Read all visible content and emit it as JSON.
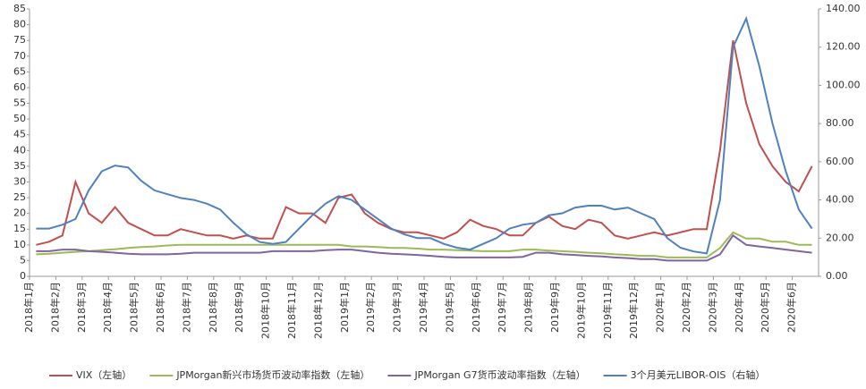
{
  "chart_data": {
    "type": "line",
    "x": [
      "2018年1月",
      null,
      "2018年2月",
      null,
      "2018年3月",
      null,
      "2018年4月",
      null,
      "2018年5月",
      null,
      "2018年6月",
      null,
      "2018年7月",
      null,
      "2018年8月",
      null,
      "2018年9月",
      null,
      "2018年10月",
      null,
      "2018年11月",
      null,
      "2018年12月",
      null,
      "2019年1月",
      null,
      "2019年2月",
      null,
      "2019年3月",
      null,
      "2019年4月",
      null,
      "2019年5月",
      null,
      "2019年6月",
      null,
      "2019年7月",
      null,
      "2019年8月",
      null,
      "2019年9月",
      null,
      "2019年10月",
      null,
      "2019年11月",
      null,
      "2019年12月",
      null,
      "2020年1月",
      null,
      "2020年2月",
      null,
      "2020年3月",
      null,
      "2020年4月",
      null,
      "2020年5月",
      null,
      "2020年6月",
      null
    ],
    "series": [
      {
        "name": "VIX（左轴）",
        "color": "#c0504d",
        "values": [
          10,
          11,
          13,
          30,
          20,
          17,
          22,
          17,
          15,
          13,
          13,
          15,
          14,
          13,
          13,
          12,
          13,
          12,
          12,
          22,
          20,
          20,
          17,
          25,
          26,
          20,
          17,
          15,
          14,
          14,
          13,
          12,
          14,
          18,
          16,
          15,
          13,
          13,
          17,
          19,
          16,
          15,
          18,
          17,
          13,
          12,
          13,
          14,
          13,
          14,
          15,
          15,
          40,
          75,
          55,
          42,
          35,
          30,
          27,
          35
        ]
      },
      {
        "name": "JPMorgan新兴市场货币波动率指数（左轴）",
        "color": "#9bbb59",
        "values": [
          7,
          7.2,
          7.5,
          7.8,
          8,
          8.3,
          8.6,
          9,
          9.3,
          9.5,
          9.8,
          10,
          10,
          10,
          10,
          10,
          10,
          10,
          10,
          10,
          10,
          10,
          10,
          10,
          9.5,
          9.5,
          9.3,
          9,
          9,
          8.8,
          8.5,
          8.5,
          8.3,
          8.2,
          8,
          8,
          8,
          8.5,
          8.5,
          8.2,
          8,
          7.8,
          7.5,
          7.3,
          7,
          6.8,
          6.5,
          6.5,
          6,
          6,
          6,
          6,
          9,
          14,
          12,
          12,
          11,
          11,
          10,
          10
        ]
      },
      {
        "name": "JPMorgan G7货币波动率指数（左轴）",
        "color": "#8064a2",
        "values": [
          8,
          8,
          8.5,
          8.5,
          8,
          7.8,
          7.5,
          7.2,
          7,
          7,
          7,
          7.2,
          7.5,
          7.5,
          7.5,
          7.5,
          7.5,
          7.5,
          8,
          8,
          8,
          8,
          8.3,
          8.5,
          8.5,
          8,
          7.5,
          7.2,
          7,
          6.8,
          6.5,
          6.2,
          6,
          6,
          6,
          6,
          6,
          6.2,
          7.5,
          7.5,
          7,
          6.8,
          6.5,
          6.3,
          6,
          5.8,
          5.5,
          5.5,
          5,
          5,
          5,
          5,
          7,
          13,
          10,
          9.5,
          9,
          8.5,
          8,
          7.5
        ]
      },
      {
        "name": "3个月美元LIBOR-OIS（右轴）",
        "color": "#4f81bd",
        "axis": "y2",
        "values": [
          25,
          25,
          27,
          30,
          45,
          55,
          58,
          57,
          50,
          45,
          43,
          41,
          40,
          38,
          35,
          28,
          22,
          18,
          17,
          18,
          25,
          32,
          38,
          42,
          40,
          35,
          30,
          25,
          22,
          20,
          20,
          17,
          15,
          14,
          17,
          20,
          25,
          27,
          28,
          32,
          33,
          36,
          37,
          37,
          35,
          36,
          33,
          30,
          20,
          15,
          13,
          12,
          40,
          120,
          135,
          110,
          80,
          55,
          35,
          25
        ]
      }
    ],
    "ylim": [
      0,
      85
    ],
    "yticks": [
      0,
      5,
      10,
      15,
      20,
      25,
      30,
      35,
      40,
      45,
      50,
      55,
      60,
      65,
      70,
      75,
      80,
      85
    ],
    "y2lim": [
      0,
      140
    ],
    "y2ticks": [
      {
        "value": 0,
        "label": "0.00"
      },
      {
        "value": 20,
        "label": "20.00"
      },
      {
        "value": 40,
        "label": "40.00"
      },
      {
        "value": 60,
        "label": "60.00"
      },
      {
        "value": 80,
        "label": "80.00"
      },
      {
        "value": 100,
        "label": "100.00"
      },
      {
        "value": 120,
        "label": "120.00"
      },
      {
        "value": 140,
        "label": "140.00"
      }
    ],
    "legend": "bottom"
  }
}
